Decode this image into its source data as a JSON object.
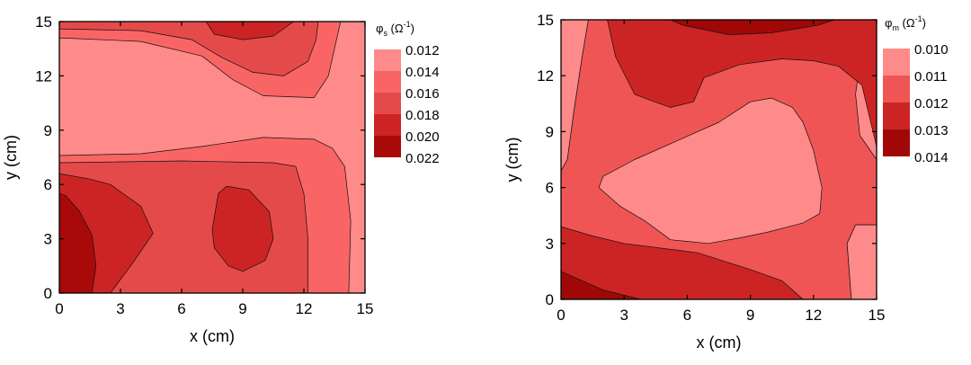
{
  "chart_data": [
    {
      "type": "contour",
      "xlabel": "x (cm)",
      "ylabel": "y (cm)",
      "xlim": [
        0,
        15
      ],
      "ylim": [
        0,
        15
      ],
      "xticks": [
        "0",
        "3",
        "6",
        "9",
        "12",
        "15"
      ],
      "yticks": [
        "0",
        "3",
        "6",
        "9",
        "12",
        "15"
      ],
      "legend_title": {
        "symbol": "φ",
        "subscript": "s",
        "unit": "(Ω",
        "unit_exp": "-1",
        "unit_close": ")"
      },
      "legend_levels": [
        "0.012",
        "0.014",
        "0.016",
        "0.018",
        "0.020",
        "0.022"
      ],
      "level_colors": [
        "#FF8A8A",
        "#F96565",
        "#E54A4A",
        "#CC2424",
        "#A80A0A"
      ],
      "legend_placement": "right",
      "regions": [
        {
          "level": 0,
          "points": [
            [
              0,
              0
            ],
            [
              15,
              0
            ],
            [
              15,
              15
            ],
            [
              0,
              15
            ]
          ]
        },
        {
          "level": 1,
          "points": [
            [
              0,
              0
            ],
            [
              14.2,
              0
            ],
            [
              14.3,
              4
            ],
            [
              14,
              7
            ],
            [
              13.4,
              8
            ],
            [
              12.5,
              8.5
            ],
            [
              10,
              8.6
            ],
            [
              7,
              8.1
            ],
            [
              4,
              7.7
            ],
            [
              0,
              7.6
            ]
          ]
        },
        {
          "level": 1,
          "points": [
            [
              0,
              15
            ],
            [
              0,
              14.1
            ],
            [
              4,
              13.9
            ],
            [
              7,
              13.1
            ],
            [
              8.5,
              11.8
            ],
            [
              10,
              10.9
            ],
            [
              12.5,
              10.8
            ],
            [
              13.2,
              12
            ],
            [
              13.6,
              14
            ],
            [
              13.8,
              15
            ]
          ]
        },
        {
          "level": 2,
          "points": [
            [
              0,
              0
            ],
            [
              12.2,
              0
            ],
            [
              12.2,
              3
            ],
            [
              12,
              5.5
            ],
            [
              11.6,
              7
            ],
            [
              10.5,
              7.2
            ],
            [
              6,
              7.3
            ],
            [
              0,
              7.2
            ]
          ]
        },
        {
          "level": 2,
          "points": [
            [
              0,
              15
            ],
            [
              0,
              14.6
            ],
            [
              4,
              14.5
            ],
            [
              6.5,
              14
            ],
            [
              8,
              13
            ],
            [
              9.5,
              12.2
            ],
            [
              11,
              12
            ],
            [
              12.2,
              12.8
            ],
            [
              12.6,
              14
            ],
            [
              12.7,
              15
            ]
          ]
        },
        {
          "level": 3,
          "points": [
            [
              0,
              0
            ],
            [
              2.5,
              0
            ],
            [
              3.5,
              1.5
            ],
            [
              4.6,
              3.3
            ],
            [
              4,
              4.8
            ],
            [
              2.5,
              6
            ],
            [
              1.5,
              6.3
            ],
            [
              0,
              6.6
            ]
          ]
        },
        {
          "level": 3,
          "points": [
            [
              7.5,
              3.5
            ],
            [
              7.8,
              5.5
            ],
            [
              8.2,
              5.9
            ],
            [
              9.3,
              5.7
            ],
            [
              10.3,
              4.5
            ],
            [
              10.5,
              3
            ],
            [
              10.1,
              1.8
            ],
            [
              9,
              1.2
            ],
            [
              8.3,
              1.5
            ],
            [
              7.6,
              2.5
            ]
          ]
        },
        {
          "level": 3,
          "points": [
            [
              7.2,
              15
            ],
            [
              7.6,
              14.3
            ],
            [
              9,
              14
            ],
            [
              10.5,
              14.2
            ],
            [
              11.5,
              15
            ]
          ]
        },
        {
          "level": 4,
          "points": [
            [
              0,
              0
            ],
            [
              1.6,
              0
            ],
            [
              1.8,
              1.5
            ],
            [
              1.6,
              3.2
            ],
            [
              1,
              4.5
            ],
            [
              0.3,
              5.4
            ],
            [
              0,
              5.5
            ]
          ]
        }
      ]
    },
    {
      "type": "contour",
      "xlabel": "x (cm)",
      "ylabel": "y (cm)",
      "xlim": [
        0,
        15
      ],
      "ylim": [
        0,
        15
      ],
      "xticks": [
        "0",
        "3",
        "6",
        "9",
        "12",
        "15"
      ],
      "yticks": [
        "0",
        "3",
        "6",
        "9",
        "12",
        "15"
      ],
      "legend_title": {
        "symbol": "φ",
        "subscript": "m",
        "unit": "(Ω",
        "unit_exp": "-1",
        "unit_close": ")"
      },
      "legend_levels": [
        "0.010",
        "0.011",
        "0.012",
        "0.013",
        "0.014"
      ],
      "level_colors": [
        "#FF8A8A",
        "#F05555",
        "#CC2424",
        "#A00808"
      ],
      "legend_placement": "right",
      "regions": [
        {
          "level": 0,
          "points": [
            [
              0,
              0
            ],
            [
              15,
              0
            ],
            [
              15,
              15
            ],
            [
              0,
              15
            ]
          ]
        },
        {
          "level": 1,
          "points": [
            [
              0,
              0
            ],
            [
              13.8,
              0
            ],
            [
              13.7,
              1.5
            ],
            [
              13.6,
              3
            ],
            [
              14,
              4
            ],
            [
              15,
              4
            ],
            [
              15,
              7.5
            ],
            [
              14.2,
              8.8
            ],
            [
              14,
              11
            ],
            [
              14.3,
              13.5
            ],
            [
              14.6,
              15
            ],
            [
              1.3,
              15
            ],
            [
              1,
              13
            ],
            [
              0.6,
              10
            ],
            [
              0.3,
              7.5
            ],
            [
              0,
              6.9
            ]
          ]
        },
        {
          "level": 2,
          "points": [
            [
              0,
              0
            ],
            [
              11.5,
              0
            ],
            [
              10.5,
              1
            ],
            [
              9,
              1.6
            ],
            [
              6.5,
              2.5
            ],
            [
              3,
              3
            ],
            [
              1.5,
              3.4
            ],
            [
              0,
              3.9
            ]
          ]
        },
        {
          "level": 2,
          "points": [
            [
              2.2,
              15
            ],
            [
              2.6,
              13
            ],
            [
              3.5,
              11
            ],
            [
              4.2,
              10.7
            ],
            [
              5.2,
              10.3
            ],
            [
              6.3,
              10.6
            ],
            [
              6.8,
              11.9
            ],
            [
              8.5,
              12.6
            ],
            [
              10.5,
              12.9
            ],
            [
              12,
              12.8
            ],
            [
              13.2,
              12.5
            ],
            [
              14.3,
              11.5
            ],
            [
              15,
              8.2
            ],
            [
              15,
              15
            ]
          ]
        },
        {
          "level": 3,
          "points": [
            [
              0,
              0
            ],
            [
              3.8,
              0
            ],
            [
              2,
              0.5
            ],
            [
              0,
              1.5
            ]
          ]
        },
        {
          "level": 3,
          "points": [
            [
              5.2,
              15
            ],
            [
              5.8,
              14.7
            ],
            [
              8,
              14.2
            ],
            [
              10,
              14.3
            ],
            [
              12.2,
              14.7
            ],
            [
              13,
              15
            ]
          ]
        }
      ],
      "light_regions": [
        {
          "level": 0,
          "points": [
            [
              1.8,
              6
            ],
            [
              2.8,
              5
            ],
            [
              4,
              4.2
            ],
            [
              5.2,
              3.2
            ],
            [
              7,
              3
            ],
            [
              8.5,
              3.3
            ],
            [
              9.8,
              3.6
            ],
            [
              11.5,
              4.1
            ],
            [
              12.3,
              4.6
            ],
            [
              12.4,
              6
            ],
            [
              12,
              8
            ],
            [
              11.5,
              9.5
            ],
            [
              11,
              10.3
            ],
            [
              10,
              10.8
            ],
            [
              9,
              10.6
            ],
            [
              7.5,
              9.5
            ],
            [
              5.5,
              8.5
            ],
            [
              3.5,
              7.5
            ],
            [
              2,
              6.6
            ]
          ]
        },
        {
          "level": 0,
          "points": [
            [
              0,
              6.9
            ],
            [
              0,
              15
            ],
            [
              1.3,
              15
            ],
            [
              1,
              13
            ],
            [
              0.6,
              10
            ],
            [
              0.3,
              7.5
            ]
          ]
        },
        {
          "level": 0,
          "points": [
            [
              15,
              0
            ],
            [
              15,
              4
            ],
            [
              14,
              4
            ],
            [
              13.6,
              3
            ],
            [
              13.7,
              1.5
            ],
            [
              13.8,
              0
            ]
          ]
        }
      ]
    }
  ]
}
